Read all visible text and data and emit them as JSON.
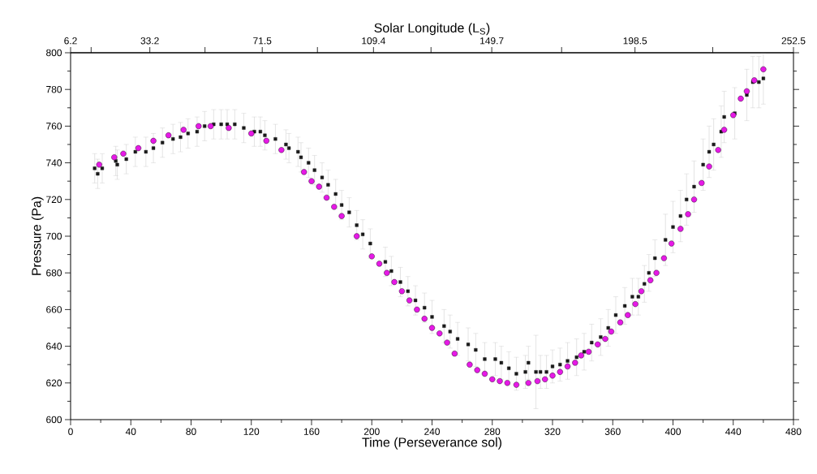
{
  "chart_data": {
    "type": "scatter",
    "xlabel": "Time (Perseverance sol)",
    "ylabel": "Pressure (Pa)",
    "x2label": "Solar Longitude (L$_{S}$)",
    "xlim": [
      0,
      480
    ],
    "xticks": [
      0,
      40,
      80,
      120,
      160,
      200,
      240,
      280,
      320,
      360,
      400,
      440,
      480
    ],
    "ylim": [
      600,
      800
    ],
    "yticks": [
      600,
      620,
      640,
      660,
      680,
      700,
      720,
      740,
      760,
      780,
      800
    ],
    "x2lim": [
      6.2,
      252.5
    ],
    "x2ticks": [
      6.2,
      {
        "value": 13.2,
        "label": null
      },
      33.2,
      {
        "value": 52,
        "label": null
      },
      71.5,
      {
        "value": 90.3,
        "label": null
      },
      109.4,
      {
        "value": 129,
        "label": null
      },
      149.7,
      {
        "value": 173.5,
        "label": null
      },
      198.5,
      {
        "value": 225,
        "label": null
      },
      252.5
    ],
    "grid": false,
    "series": [
      {
        "marker": "square",
        "color": "#1a1a1a",
        "x": [
          16,
          18,
          21,
          30,
          31,
          37,
          43,
          50,
          55,
          61,
          68,
          73,
          78,
          84,
          89,
          95,
          100,
          104,
          109,
          115,
          122,
          126,
          129,
          136,
          143,
          145,
          151,
          153,
          158,
          162,
          167,
          171,
          176,
          180,
          185,
          190,
          194,
          199,
          209,
          213,
          219,
          224,
          229,
          235,
          240,
          248,
          252,
          257,
          264,
          269,
          275,
          282,
          286,
          291,
          296,
          302,
          304,
          309,
          312,
          316,
          320,
          325,
          330,
          336,
          341,
          346,
          352,
          357,
          362,
          368,
          373,
          377,
          381,
          384,
          388,
          395,
          400,
          405,
          409,
          414,
          420,
          424,
          427,
          432,
          434,
          441,
          449,
          453,
          457,
          460
        ],
        "values": [
          737,
          734,
          737,
          741,
          739,
          742,
          746,
          746,
          748,
          751,
          753,
          754,
          756,
          757,
          760,
          761,
          761,
          761,
          761,
          759,
          757,
          757,
          755,
          753,
          750,
          748,
          746,
          743,
          740,
          736,
          732,
          728,
          723,
          717,
          713,
          706,
          701,
          696,
          686,
          681,
          675,
          670,
          665,
          661,
          656,
          651,
          648,
          644,
          641,
          638,
          633,
          633,
          631,
          628,
          625,
          626,
          631,
          626,
          626,
          626,
          629,
          630,
          632,
          634,
          637,
          642,
          645,
          650,
          657,
          662,
          667,
          667,
          674,
          680,
          688,
          698,
          705,
          711,
          720,
          727,
          739,
          746,
          750,
          757,
          765,
          767,
          777,
          784,
          784,
          786
        ],
        "errors": [
          8,
          8,
          8,
          8,
          8,
          8,
          8,
          8,
          8,
          8,
          8,
          8,
          8,
          8,
          8,
          8,
          8,
          8,
          8,
          8,
          8,
          8,
          8,
          8,
          8,
          8,
          8,
          8,
          8,
          8,
          8,
          8,
          8,
          8,
          8,
          8,
          8,
          8,
          8,
          8,
          8,
          8,
          8,
          8,
          9,
          9,
          9,
          9,
          9,
          9,
          9,
          9,
          9,
          9,
          9,
          9,
          9,
          20,
          9,
          9,
          9,
          9,
          10,
          10,
          10,
          10,
          10,
          10,
          10,
          10,
          10,
          10,
          10,
          10,
          10,
          14,
          14,
          14,
          14,
          14,
          14,
          14,
          14,
          14,
          14,
          14,
          14,
          14,
          14,
          14
        ]
      },
      {
        "marker": "circle",
        "color": "#e619e6",
        "x": [
          19,
          29,
          35,
          45,
          55,
          65,
          75,
          85,
          93,
          105,
          120,
          130,
          140,
          155,
          160,
          165,
          170,
          175,
          180,
          190,
          200,
          205,
          210,
          215,
          220,
          225,
          230,
          235,
          240,
          245,
          250,
          255,
          265,
          270,
          275,
          280,
          285,
          290,
          296,
          304,
          310,
          315,
          320,
          325,
          330,
          335,
          339,
          344,
          350,
          355,
          359,
          365,
          370,
          375,
          379,
          385,
          389,
          394,
          399,
          405,
          410,
          414,
          419,
          424,
          430,
          434,
          440,
          445,
          449,
          454,
          460
        ],
        "values": [
          739,
          743,
          745,
          748,
          752,
          755,
          758,
          760,
          760,
          759,
          756,
          752,
          747,
          735,
          730,
          727,
          721,
          716,
          711,
          700,
          689,
          685,
          680,
          675,
          670,
          665,
          660,
          655,
          650,
          647,
          642,
          636,
          630,
          627,
          625,
          622,
          621,
          620,
          619,
          620,
          621,
          622,
          624,
          626,
          629,
          631,
          635,
          637,
          641,
          644,
          648,
          653,
          657,
          663,
          670,
          676,
          680,
          688,
          696,
          704,
          712,
          720,
          729,
          738,
          747,
          758,
          766,
          775,
          779,
          785,
          791
        ]
      }
    ]
  }
}
